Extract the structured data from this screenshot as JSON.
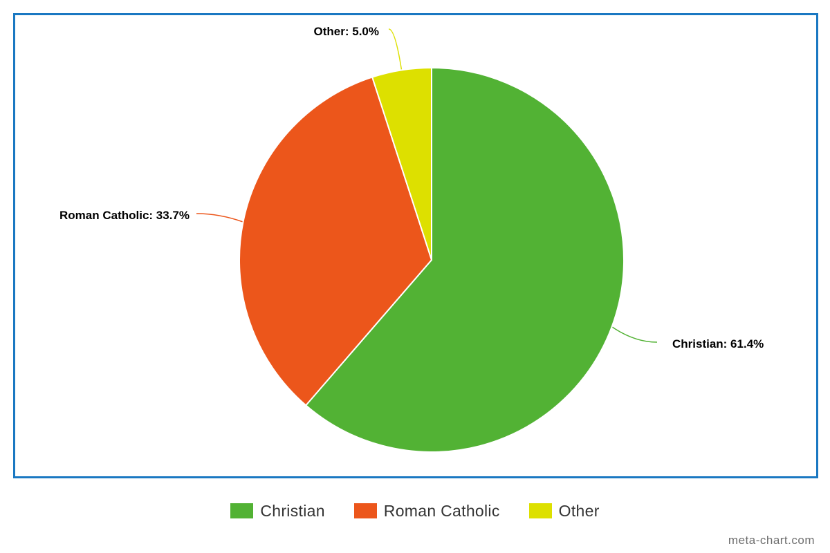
{
  "chart_data": {
    "type": "pie",
    "categories": [
      "Christian",
      "Roman Catholic",
      "Other"
    ],
    "values": [
      61.4,
      33.7,
      5.0
    ],
    "slice_labels": [
      "Christian: 61.4%",
      "Roman Catholic: 33.7%",
      "Other: 5.0%"
    ],
    "colors": [
      "#52b234",
      "#ec561b",
      "#dde000"
    ],
    "legend": {
      "placement": "bottom",
      "entries": [
        "Christian",
        "Roman Catholic",
        "Other"
      ]
    }
  },
  "watermark": "meta-chart.com",
  "frame_color": "#1a78c2"
}
